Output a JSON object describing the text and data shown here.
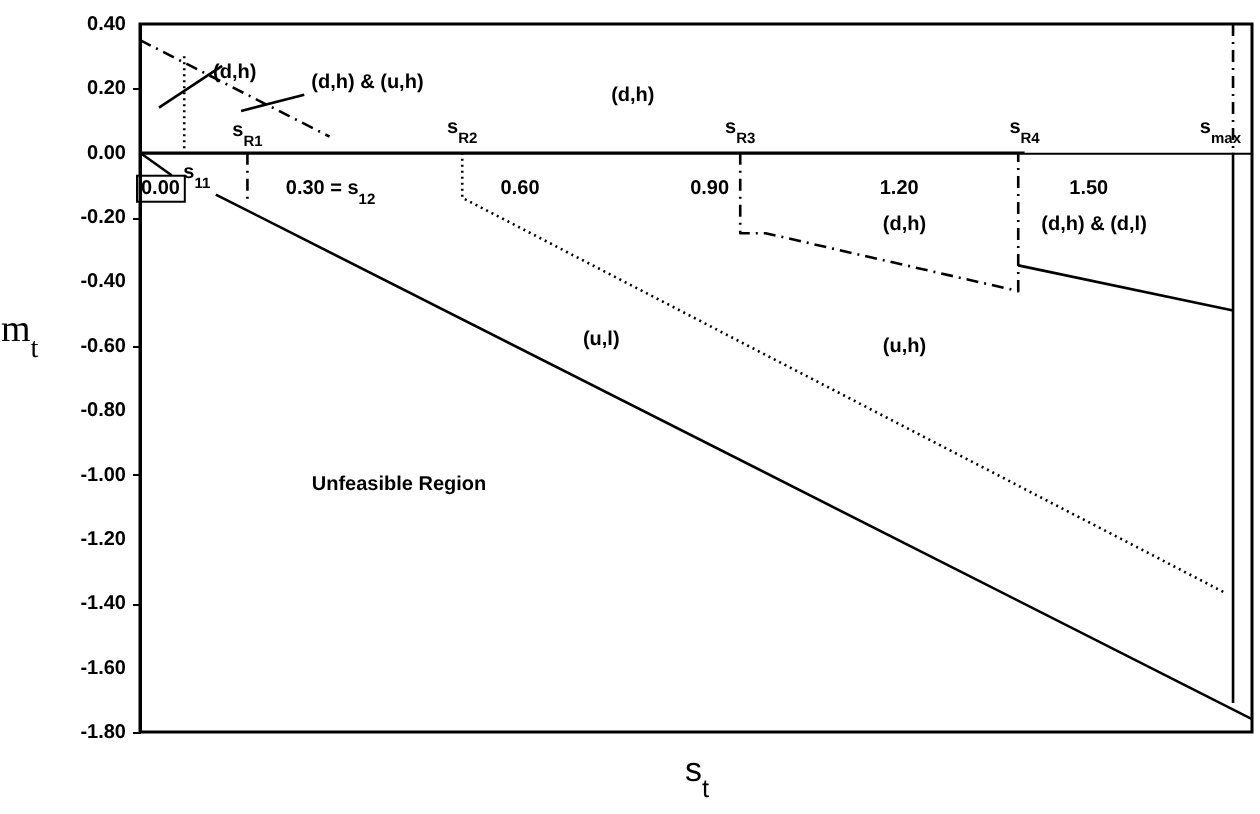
{
  "chart_data": {
    "type": "line",
    "xlabel": "s$_{t}$",
    "ylabel": "m$_{t}$",
    "xlim": [
      0,
      1.76
    ],
    "ylim": [
      -1.8,
      0.4
    ],
    "xticks": [
      {
        "value": 0,
        "label": "0.00"
      },
      {
        "value": 0.3,
        "label": "0.30 = s$_{12}$"
      },
      {
        "value": 0.6,
        "label": "0.60"
      },
      {
        "value": 0.9,
        "label": "0.90"
      },
      {
        "value": 1.2,
        "label": "1.20"
      },
      {
        "value": 1.5,
        "label": "1.50"
      }
    ],
    "yticks": [
      {
        "value": 0.4,
        "label": "0.40"
      },
      {
        "value": 0.2,
        "label": "0.20"
      },
      {
        "value": 0,
        "label": "0.00"
      },
      {
        "value": -0.2,
        "label": "-0.20"
      },
      {
        "value": -0.4,
        "label": "-0.40"
      },
      {
        "value": -0.6,
        "label": "-0.60"
      },
      {
        "value": -0.8,
        "label": "-0.80"
      },
      {
        "value": -1,
        "label": "-1.00"
      },
      {
        "value": -1.2,
        "label": "-1.20"
      },
      {
        "value": -1.4,
        "label": "-1.40"
      },
      {
        "value": -1.6,
        "label": "-1.60"
      },
      {
        "value": -1.8,
        "label": "-1.80"
      }
    ],
    "series": [
      {
        "color": "#000000",
        "line_style": "solid",
        "x": [
          0,
          1.4
        ],
        "values": [
          0,
          0
        ]
      },
      {
        "color": "#000000",
        "line_style": "dashed",
        "x": [
          0,
          0.3
        ],
        "values": [
          0.35,
          0.05
        ]
      },
      {
        "color": "#000000",
        "line_style": "dotted",
        "x": [
          0.07,
          0.07
        ],
        "values": [
          0.3,
          0
        ]
      },
      {
        "color": "#000000",
        "line_style": "solid",
        "x": [
          0,
          0.05
        ],
        "values": [
          0,
          -0.07
        ]
      },
      {
        "color": "#000000",
        "line_style": "solid",
        "x": [
          0.12,
          1.76
        ],
        "values": [
          -0.13,
          -1.76
        ]
      },
      {
        "color": "#000000",
        "line_style": "dashed",
        "x": [
          0.17,
          0.17
        ],
        "values": [
          0,
          -0.16
        ]
      },
      {
        "color": "#000000",
        "line_style": "dotted",
        "x": [
          0.51,
          0.51,
          1.72
        ],
        "values": [
          0,
          -0.14,
          -1.37
        ]
      },
      {
        "color": "#000000",
        "line_style": "dashed",
        "x": [
          0.95,
          0.95,
          0.99,
          1.39,
          1.39
        ],
        "values": [
          0,
          -0.25,
          -0.25,
          -0.43,
          0
        ]
      },
      {
        "color": "#000000",
        "line_style": "solid",
        "x": [
          1.39,
          1.73
        ],
        "values": [
          -0.35,
          -0.49
        ]
      },
      {
        "color": "#000000",
        "line_style": "dashed",
        "x": [
          1.73,
          1.73
        ],
        "values": [
          0.4,
          0
        ]
      },
      {
        "color": "#000000",
        "line_style": "solid",
        "x": [
          1.73,
          1.73
        ],
        "values": [
          0,
          -1.71
        ]
      },
      {
        "color": "#000000",
        "line_style": "solid",
        "x": [
          0.03,
          0.13
        ],
        "values": [
          0.14,
          0.27
        ]
      },
      {
        "color": "#000000",
        "line_style": "solid",
        "x": [
          0.16,
          0.26
        ],
        "values": [
          0.13,
          0.18
        ]
      }
    ],
    "annotations": [
      "(d,h)",
      "(d,h) & (u,h)",
      "(d,h)",
      "s$_{R1}$",
      "s$_{R2}$",
      "s$_{R3}$",
      "s$_{R4}$",
      "s$_{max}$",
      "s$_{11}$",
      "(d,h)",
      "(d,h) & (d,l)",
      "(u,l)",
      "(u,h)",
      "Unfeasible Region"
    ]
  }
}
